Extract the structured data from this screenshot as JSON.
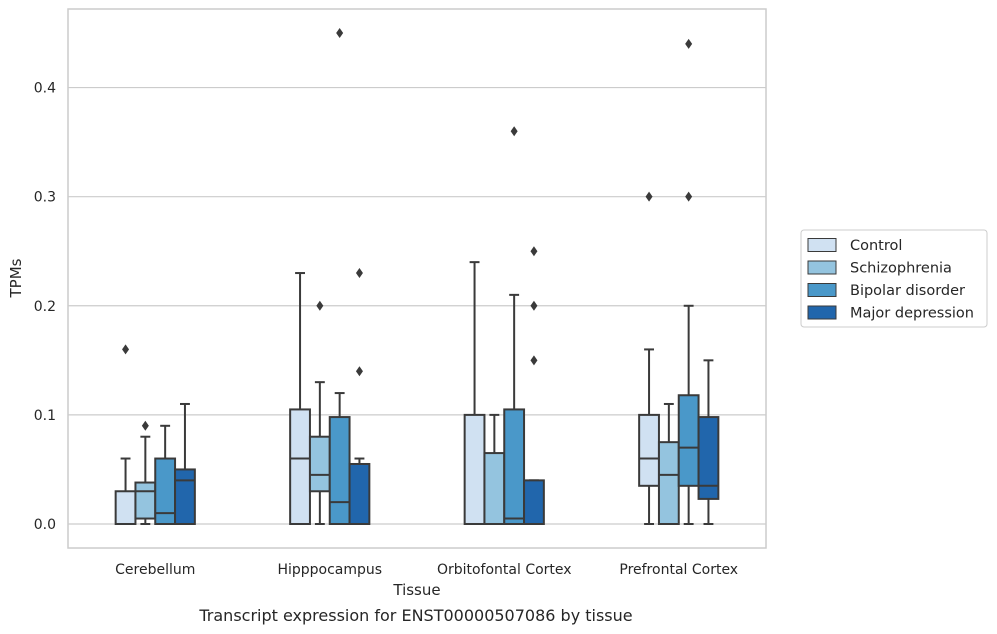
{
  "chart_data": {
    "type": "box",
    "xlabel": "Tissue",
    "ylabel": "TPMs",
    "caption": "Transcript expression for ENST00000507086 by tissue",
    "ylim": [
      -0.022,
      0.472
    ],
    "yticks": [
      0.0,
      0.1,
      0.2,
      0.3,
      0.4
    ],
    "ytick_labels": [
      "0.0",
      "0.1",
      "0.2",
      "0.3",
      "0.4"
    ],
    "grid": "horizontal",
    "legend_position": "right",
    "categories": [
      "Cerebellum",
      "Hipppocampus",
      "Orbitofontal Cortex",
      "Prefrontal Cortex"
    ],
    "series": [
      {
        "name": "Control",
        "color": "#d0e1f2",
        "boxes": [
          {
            "whisker_low": 0.0,
            "q1": 0.0,
            "median": 0.0,
            "q3": 0.03,
            "whisker_high": 0.06,
            "outliers": [
              0.16
            ]
          },
          {
            "whisker_low": 0.0,
            "q1": 0.0,
            "median": 0.06,
            "q3": 0.105,
            "whisker_high": 0.23,
            "outliers": []
          },
          {
            "whisker_low": 0.0,
            "q1": 0.0,
            "median": 0.0,
            "q3": 0.1,
            "whisker_high": 0.24,
            "outliers": []
          },
          {
            "whisker_low": 0.0,
            "q1": 0.035,
            "median": 0.06,
            "q3": 0.1,
            "whisker_high": 0.16,
            "outliers": [
              0.3
            ]
          }
        ]
      },
      {
        "name": "Schizophrenia",
        "color": "#94c4df",
        "boxes": [
          {
            "whisker_low": 0.0,
            "q1": 0.005,
            "median": 0.03,
            "q3": 0.038,
            "whisker_high": 0.08,
            "outliers": [
              0.09
            ]
          },
          {
            "whisker_low": 0.0,
            "q1": 0.03,
            "median": 0.045,
            "q3": 0.08,
            "whisker_high": 0.13,
            "outliers": [
              0.2
            ]
          },
          {
            "whisker_low": 0.0,
            "q1": 0.0,
            "median": 0.0,
            "q3": 0.065,
            "whisker_high": 0.1,
            "outliers": []
          },
          {
            "whisker_low": 0.0,
            "q1": 0.0,
            "median": 0.045,
            "q3": 0.075,
            "whisker_high": 0.11,
            "outliers": []
          }
        ]
      },
      {
        "name": "Bipolar disorder",
        "color": "#4a98c9",
        "boxes": [
          {
            "whisker_low": 0.0,
            "q1": 0.0,
            "median": 0.01,
            "q3": 0.06,
            "whisker_high": 0.09,
            "outliers": []
          },
          {
            "whisker_low": 0.0,
            "q1": 0.0,
            "median": 0.02,
            "q3": 0.098,
            "whisker_high": 0.12,
            "outliers": [
              0.45
            ]
          },
          {
            "whisker_low": 0.0,
            "q1": 0.0,
            "median": 0.005,
            "q3": 0.105,
            "whisker_high": 0.21,
            "outliers": [
              0.36
            ]
          },
          {
            "whisker_low": 0.0,
            "q1": 0.035,
            "median": 0.07,
            "q3": 0.118,
            "whisker_high": 0.2,
            "outliers": [
              0.3,
              0.44
            ]
          }
        ]
      },
      {
        "name": "Major depression",
        "color": "#2166ac",
        "boxes": [
          {
            "whisker_low": 0.0,
            "q1": 0.0,
            "median": 0.04,
            "q3": 0.05,
            "whisker_high": 0.11,
            "outliers": []
          },
          {
            "whisker_low": 0.0,
            "q1": 0.0,
            "median": 0.0,
            "q3": 0.055,
            "whisker_high": 0.06,
            "outliers": [
              0.14,
              0.23
            ]
          },
          {
            "whisker_low": 0.0,
            "q1": 0.0,
            "median": 0.0,
            "q3": 0.04,
            "whisker_high": 0.04,
            "outliers": [
              0.15,
              0.2,
              0.25
            ]
          },
          {
            "whisker_low": 0.0,
            "q1": 0.023,
            "median": 0.035,
            "q3": 0.098,
            "whisker_high": 0.15,
            "outliers": []
          }
        ]
      }
    ]
  }
}
